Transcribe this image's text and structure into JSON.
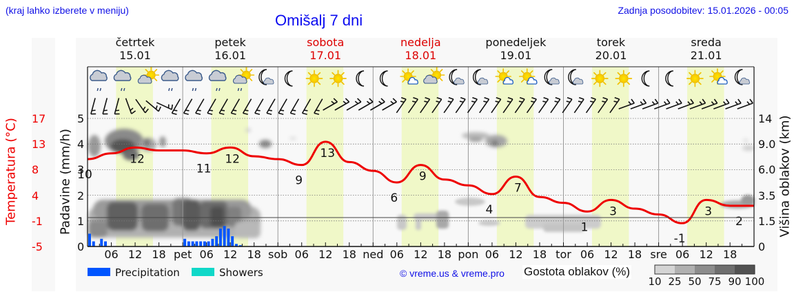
{
  "header": {
    "region_hint": "(kraj lahko izberete v meniju)",
    "title": "Omišalj 7 dni",
    "last_update": "Zadnja posodobitev: 15.01.2026 - 00:05"
  },
  "days": [
    {
      "name": "četrtek",
      "date": "15.01",
      "weekend": false
    },
    {
      "name": "petek",
      "date": "16.01",
      "weekend": false
    },
    {
      "name": "sobota",
      "date": "17.01",
      "weekend": true
    },
    {
      "name": "nedelja",
      "date": "18.01",
      "weekend": true
    },
    {
      "name": "ponedeljek",
      "date": "19.01",
      "weekend": false
    },
    {
      "name": "torek",
      "date": "20.01",
      "weekend": false
    },
    {
      "name": "sreda",
      "date": "21.01",
      "weekend": false
    }
  ],
  "x_ticks": [
    "06",
    "12",
    "18",
    "pet",
    "06",
    "12",
    "18",
    "sob",
    "06",
    "12",
    "18",
    "ned",
    "06",
    "12",
    "18",
    "pon",
    "06",
    "12",
    "18",
    "tor",
    "06",
    "12",
    "18",
    "sre",
    "06",
    "12",
    "18"
  ],
  "weather_icons": [
    "cloud-rain",
    "cloud-rain",
    "sun-cloud",
    "cloud-rain",
    "cloud-rain",
    "cloud-rain",
    "sun-cloud-rain",
    "moon-cloud",
    "moon",
    "sun",
    "sun",
    "moon",
    "moon",
    "sun-small-cloud",
    "sun-cloud",
    "moon-cloud",
    "moon-cloud",
    "sun-small-cloud",
    "sun-small-cloud",
    "moon-cloud",
    "moon-cloud",
    "sun",
    "sun",
    "moon",
    "moon",
    "sun",
    "sun-small-cloud",
    "moon-cloud"
  ],
  "axes": {
    "temperature_title": "Temperatura (°C)",
    "temperature_ticks": [
      "17",
      "13",
      "8",
      "4",
      "-1",
      "-5"
    ],
    "precip_title": "Padavine (mm/h)",
    "precip_ticks": [
      "5",
      "4",
      "3",
      "2",
      "1",
      "0"
    ],
    "cloud_height_title": "Višina oblakov (km)",
    "cloud_height_ticks": [
      "14",
      "9.0",
      "6.0",
      "3.5",
      "1.5",
      "0"
    ]
  },
  "legend": {
    "precipitation_label": "Precipitation",
    "precipitation_color": "#0055ff",
    "showers_label": "Showers",
    "showers_color": "#10d8c8",
    "copyright": "© vreme.us & vreme.pro",
    "cloud_density_title": "Gostota oblakov (%)",
    "cloud_density_ticks": [
      "10",
      "25",
      "50",
      "75",
      "90",
      "100"
    ],
    "cloud_density_colors": [
      "#d4d4d4",
      "#b0b0b0",
      "#8c8c8c",
      "#6e6e6e",
      "#525252"
    ]
  },
  "colors": {
    "temperature_line": "#ee0000",
    "daylight_band": "#f0f8c8",
    "plot_bg": "#f8f8f8"
  },
  "chart_data": {
    "type": "line",
    "title": "Omišalj 7 dni",
    "xlabel": "",
    "ylabel": "Temperatura (°C)",
    "ylim": [
      -5,
      17
    ],
    "grid": true,
    "legend_position": "bottom",
    "series": [
      {
        "name": "Temperatura (°C)",
        "x": [
          "15.01 00",
          "15.01 06",
          "15.01 12",
          "15.01 18",
          "16.01 00",
          "16.01 06",
          "16.01 12",
          "16.01 18",
          "17.01 00",
          "17.01 06",
          "17.01 12",
          "17.01 18",
          "18.01 00",
          "18.01 06",
          "18.01 12",
          "18.01 18",
          "19.01 00",
          "19.01 06",
          "19.01 12",
          "19.01 18",
          "20.01 00",
          "20.01 06",
          "20.01 12",
          "20.01 18",
          "21.01 00",
          "21.01 06",
          "21.01 12",
          "21.01 18",
          "21.01 24"
        ],
        "values": [
          10,
          11,
          12,
          11.5,
          11.5,
          11,
          12,
          10.5,
          10,
          9,
          13,
          9.5,
          8,
          6,
          9,
          6.5,
          5.5,
          4,
          7,
          3.5,
          2.5,
          1,
          3,
          1.5,
          0.5,
          -1,
          3,
          2,
          2
        ]
      },
      {
        "name": "Precipitation (mm/h)",
        "x": [
          "15.01 00",
          "15.01 01",
          "15.01 03",
          "15.01 04",
          "16.01 00",
          "16.01 01",
          "16.01 02",
          "16.01 03",
          "16.01 04",
          "16.01 05",
          "16.01 06",
          "16.01 07",
          "16.01 08",
          "16.01 09",
          "16.01 10",
          "16.01 11",
          "16.01 12",
          "16.01 13",
          "16.01 14"
        ],
        "values": [
          0.5,
          0.2,
          0.3,
          0.2,
          0.3,
          0.2,
          0.2,
          0.2,
          0.2,
          0.2,
          0.2,
          0.3,
          0.4,
          0.7,
          0.8,
          0.7,
          0.4,
          0.1,
          0.05
        ]
      }
    ],
    "annotations": {
      "temperature_labels": [
        {
          "day": "15.01",
          "hour": "00",
          "value": "10"
        },
        {
          "day": "15.01",
          "hour": "12",
          "value": "12"
        },
        {
          "day": "16.01",
          "hour": "06",
          "value": "11"
        },
        {
          "day": "16.01",
          "hour": "12",
          "value": "12"
        },
        {
          "day": "17.01",
          "hour": "06",
          "value": "9"
        },
        {
          "day": "17.01",
          "hour": "12",
          "value": "13"
        },
        {
          "day": "18.01",
          "hour": "06",
          "value": "6"
        },
        {
          "day": "18.01",
          "hour": "12",
          "value": "9"
        },
        {
          "day": "19.01",
          "hour": "06",
          "value": "4"
        },
        {
          "day": "19.01",
          "hour": "12",
          "value": "7"
        },
        {
          "day": "20.01",
          "hour": "06",
          "value": "1"
        },
        {
          "day": "20.01",
          "hour": "12",
          "value": "3"
        },
        {
          "day": "21.01",
          "hour": "06",
          "value": "-1"
        },
        {
          "day": "21.01",
          "hour": "12",
          "value": "3"
        },
        {
          "day": "21.01",
          "hour": "21",
          "value": "2"
        }
      ]
    },
    "secondary_axes": {
      "precip_ylim": [
        0,
        5
      ],
      "cloud_height_ticks_km": [
        0,
        1.5,
        3.5,
        6.0,
        9.0,
        14
      ]
    }
  }
}
